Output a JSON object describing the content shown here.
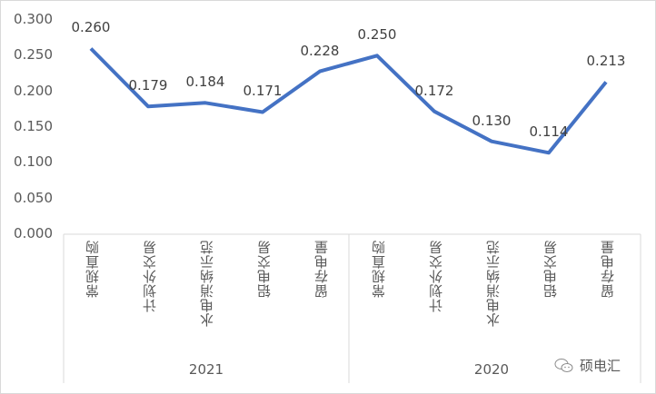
{
  "chart_data": {
    "type": "line",
    "title": "",
    "xlabel": "",
    "ylabel": "",
    "ylim": [
      0,
      0.3
    ],
    "yticks": [
      "0.000",
      "0.050",
      "0.100",
      "0.150",
      "0.200",
      "0.250",
      "0.300"
    ],
    "groups": [
      {
        "label": "2021",
        "categories": [
          "常规直购",
          "计划外交易",
          "水电消纳示范",
          "铝电交易",
          "留存电量"
        ]
      },
      {
        "label": "2020",
        "categories": [
          "常规直购",
          "计划外交易",
          "水电消纳示范",
          "铝电交易",
          "留存电量"
        ]
      }
    ],
    "categories": [
      "2021-常规直购",
      "2021-计划外交易",
      "2021-水电消纳示范",
      "2021-铝电交易",
      "2021-留存电量",
      "2020-常规直购",
      "2020-计划外交易",
      "2020-水电消纳示范",
      "2020-铝电交易",
      "2020-留存电量"
    ],
    "series": [
      {
        "name": "",
        "color": "#4472c4",
        "values": [
          0.26,
          0.179,
          0.184,
          0.171,
          0.228,
          0.25,
          0.172,
          0.13,
          0.114,
          0.213
        ]
      }
    ],
    "data_labels": [
      "0.260",
      "0.179",
      "0.184",
      "0.171",
      "0.228",
      "0.250",
      "0.172",
      "0.130",
      "0.114",
      "0.213"
    ],
    "grid": false,
    "legend": "none"
  },
  "watermark": {
    "text": "硕电汇",
    "icon": "wechat-icon"
  }
}
